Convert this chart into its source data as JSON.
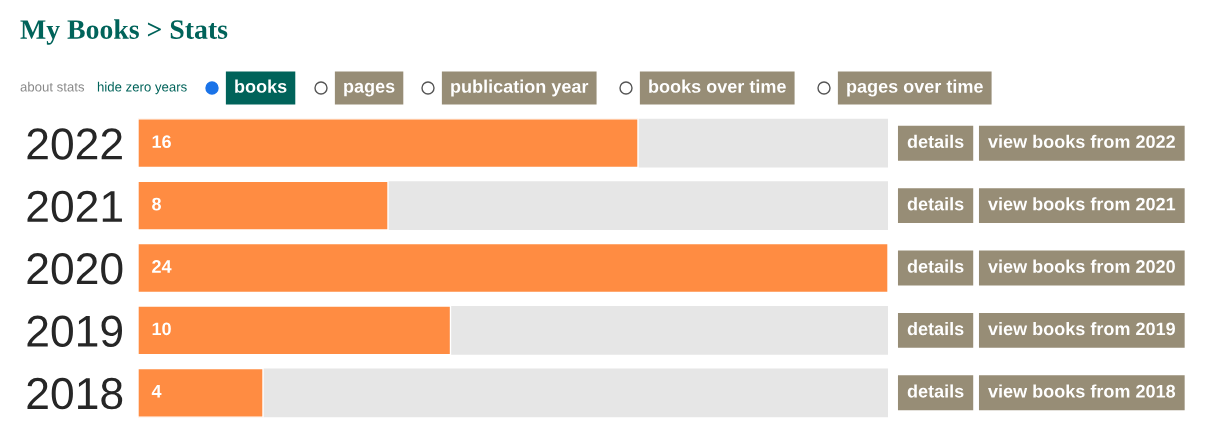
{
  "chart_data": {
    "type": "bar",
    "orientation": "horizontal",
    "title": "My Books > Stats",
    "categories": [
      "2022",
      "2021",
      "2020",
      "2019",
      "2018"
    ],
    "values": [
      16,
      8,
      24,
      10,
      4
    ],
    "color": "#ff8c42",
    "xlim": [
      0,
      24
    ],
    "tick_labels": "y",
    "data_labels": true,
    "grid": false,
    "legend": false,
    "annotations": [
      "about stats",
      "hide zero years",
      "books",
      "pages",
      "publication year",
      "books over time",
      "pages over time",
      "details",
      "view books from 2022",
      "details",
      "view books from 2021",
      "details",
      "view books from 2020",
      "details",
      "view books from 2019",
      "details",
      "view books from 2018"
    ]
  }
}
